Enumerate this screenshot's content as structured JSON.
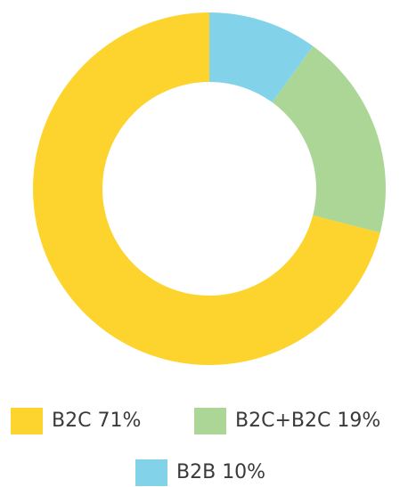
{
  "chart_data": {
    "type": "donut",
    "categories": [
      "B2C",
      "B2C+B2C",
      "B2B"
    ],
    "values": [
      71,
      19,
      10
    ],
    "value_labels": [
      "71%",
      "19%",
      "10%"
    ],
    "colors": [
      "#fdd42e",
      "#abd696",
      "#82d3ea"
    ]
  }
}
